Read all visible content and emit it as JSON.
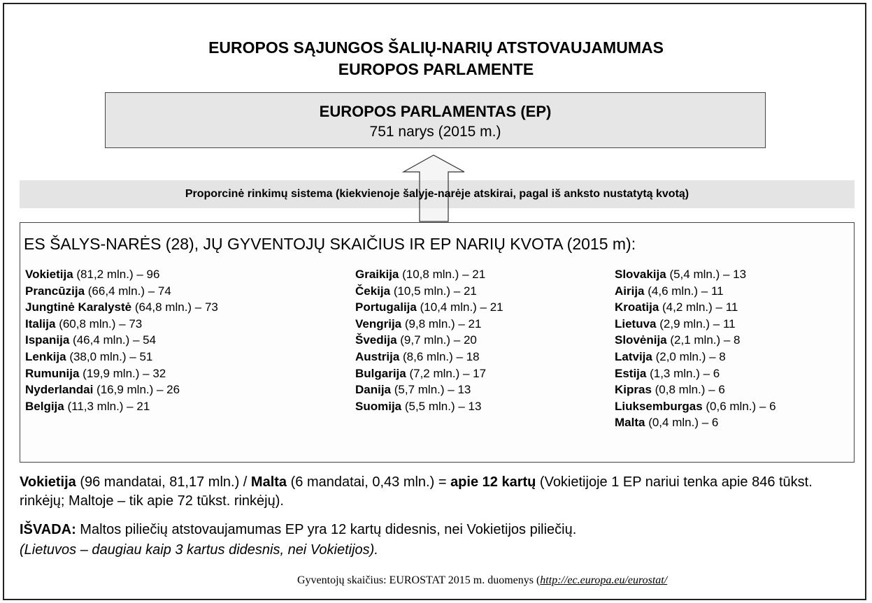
{
  "header": {
    "title_line1": "EUROPOS SĄJUNGOS ŠALIŲ-NARIŲ ATSTOVAUJAMUMAS",
    "title_line2": "EUROPOS PARLAMENTE"
  },
  "parliament": {
    "title": "EUROPOS PARLAMENTAS (EP)",
    "subtitle": "751 narys (2015 m.)"
  },
  "system": "Proporcinė rinkimų sistema (kiekvienoje šalyje-narėje atskirai, pagal iš anksto nustatytą kvotą)",
  "countries": {
    "heading": "ES ŠALYS-NARĖS (28), JŲ GYVENTOJŲ SKAIČIUS IR EP NARIŲ KVOTA (2015 m):",
    "columns": [
      [
        {
          "name": "Vokietija",
          "detail": " (81,2 mln.) – 96"
        },
        {
          "name": "Prancūzija",
          "detail": " (66,4 mln.) – 74"
        },
        {
          "name": "Jungtinė Karalystė",
          "detail": " (64,8 mln.) – 73"
        },
        {
          "name": "Italija",
          "detail": " (60,8 mln.) – 73"
        },
        {
          "name": "Ispanija",
          "detail": " (46,4 mln.) – 54"
        },
        {
          "name": "Lenkija",
          "detail": " (38,0 mln.) – 51"
        },
        {
          "name": "Rumunija",
          "detail": " (19,9 mln.) – 32"
        },
        {
          "name": "Nyderlandai",
          "detail": " (16,9 mln.) – 26"
        },
        {
          "name": "Belgija",
          "detail": " (11,3 mln.) – 21"
        }
      ],
      [
        {
          "name": "Graikija",
          "detail": " (10,8 mln.) – 21"
        },
        {
          "name": "Čekija",
          "detail": " (10,5 mln.) – 21"
        },
        {
          "name": "Portugalija",
          "detail": " (10,4 mln.) – 21"
        },
        {
          "name": "Vengrija",
          "detail": " (9,8 mln.) – 21"
        },
        {
          "name": "Švedija",
          "detail": " (9,7 mln.) – 20"
        },
        {
          "name": "Austrija",
          "detail": " (8,6 mln.) – 18"
        },
        {
          "name": "Bulgarija",
          "detail": " (7,2 mln.) – 17"
        },
        {
          "name": "Danija",
          "detail": " (5,7 mln.) – 13"
        },
        {
          "name": "Suomija",
          "detail": " (5,5 mln.) – 13"
        }
      ],
      [
        {
          "name": "Slovakija",
          "detail": " (5,4 mln.) – 13"
        },
        {
          "name": "Airija",
          "detail": " (4,6 mln.) – 11"
        },
        {
          "name": "Kroatija",
          "detail": " (4,2 mln.) – 11"
        },
        {
          "name": "Lietuva",
          "detail": " (2,9 mln.) – 11"
        },
        {
          "name": "Slovėnija",
          "detail": " (2,1 mln.) – 8"
        },
        {
          "name": "Latvija",
          "detail": " (2,0 mln.) – 8"
        },
        {
          "name": "Estija",
          "detail": " (1,3 mln.) – 6"
        },
        {
          "name": "Kipras",
          "detail": " (0,8 mln.) – 6"
        },
        {
          "name": "Liuksemburgas",
          "detail": " (0,6 mln.) – 6"
        },
        {
          "name": "Malta",
          "detail": " (0,4 mln.) – 6"
        }
      ]
    ]
  },
  "paragraphs": [
    {
      "segments": [
        {
          "text": "Vokietija",
          "bold": true
        },
        {
          "text": " (96 mandatai, 81,17 mln.) / ",
          "bold": false
        },
        {
          "text": "Malta",
          "bold": true
        },
        {
          "text": " (6 mandatai, 0,43 mln.) = ",
          "bold": false
        },
        {
          "text": "apie 12 kartų",
          "bold": true
        },
        {
          "text": " (Vokietijoje 1 EP nariui tenka apie 846 tūkst. rinkėjų; Maltoje – tik apie 72 tūkst. rinkėjų).",
          "bold": false
        }
      ]
    },
    {
      "segments": [
        {
          "text": "IŠVADA:",
          "bold": true
        },
        {
          "text": " Maltos piliečių atstovaujamumas EP yra 12 kartų didesnis, nei Vokietijos piliečių.",
          "bold": false
        }
      ],
      "note": "(Lietuvos – daugiau kaip 3 kartus didesnis, nei Vokietijos)."
    }
  ],
  "footer": {
    "text": "Gyventojų skaičius:  EUROSTAT 2015 m. duomenys (",
    "link": "http://ec.europa.eu/eurostat/"
  }
}
